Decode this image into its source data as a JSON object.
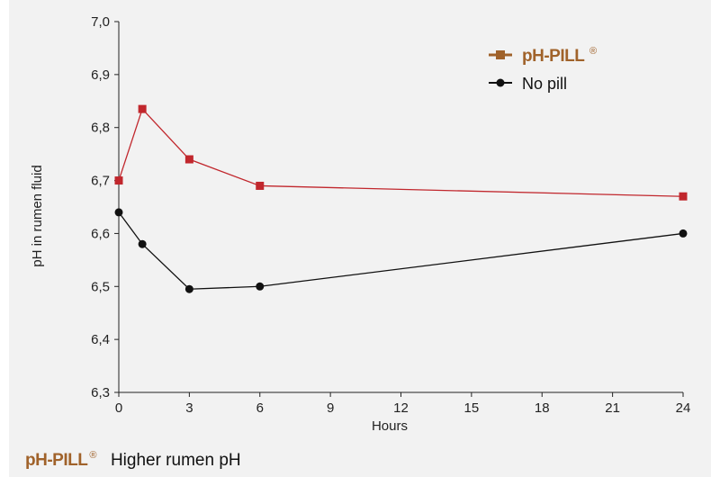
{
  "chart_data": {
    "type": "line",
    "title": "",
    "xlabel": "Hours",
    "ylabel": "pH in rumen fluid",
    "xlim": [
      0,
      24
    ],
    "ylim": [
      6.3,
      7.0
    ],
    "xticks": [
      "0",
      "3",
      "6",
      "9",
      "12",
      "15",
      "18",
      "21",
      "24"
    ],
    "yticks": [
      "6,3",
      "6,4",
      "6,5",
      "6,6",
      "6,7",
      "6,8",
      "6,9",
      "7,0"
    ],
    "legend_position": "top-right",
    "series": [
      {
        "name": "pH-PILL",
        "mark": "®",
        "color": "#c1272d",
        "legend_color": "#a0622a",
        "marker": "square",
        "x": [
          0,
          1,
          3,
          6,
          24
        ],
        "y": [
          6.7,
          6.835,
          6.74,
          6.69,
          6.67
        ]
      },
      {
        "name": "No pill",
        "color": "#111111",
        "marker": "circle",
        "x": [
          0,
          1,
          3,
          6,
          24
        ],
        "y": [
          6.64,
          6.58,
          6.495,
          6.5,
          6.6
        ]
      }
    ]
  },
  "footer": {
    "brand": "pH-PILL",
    "mark": "®",
    "text": "Higher rumen pH"
  }
}
